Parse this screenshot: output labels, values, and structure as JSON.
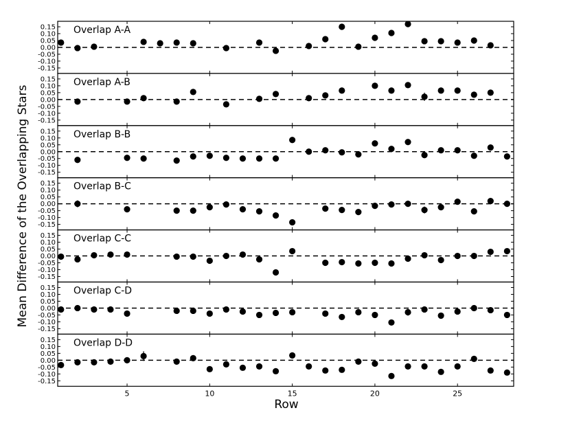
{
  "chart_data": {
    "type": "scatter",
    "xlabel": "Row",
    "ylabel": "Mean Difference of the Overlapping Stars",
    "xlim": [
      0.8,
      28.4
    ],
    "xticks": [
      5,
      10,
      15,
      20,
      25
    ],
    "ylim": [
      -0.19,
      0.19
    ],
    "yticks": [
      -0.15,
      -0.1,
      -0.05,
      0.0,
      0.05,
      0.1,
      0.15
    ],
    "ytick_labels": [
      "-0.15",
      "-0.10",
      "-0.05",
      "0.00",
      "0.05",
      "0.10",
      "0.15"
    ],
    "reference_line": {
      "y": 0,
      "style": "dashed"
    },
    "panels": [
      {
        "title": "Overlap A-A",
        "x": [
          1,
          2,
          3,
          6,
          7,
          8,
          9,
          11,
          13,
          14,
          16,
          17,
          18,
          19,
          20,
          21,
          22,
          23,
          24,
          25,
          26,
          27
        ],
        "y": [
          0.035,
          -0.005,
          0.005,
          0.04,
          0.03,
          0.035,
          0.03,
          -0.005,
          0.035,
          -0.025,
          0.01,
          0.06,
          0.15,
          0.005,
          0.07,
          0.105,
          0.17,
          0.045,
          0.045,
          0.035,
          0.05,
          0.015
        ],
        "err": [
          0,
          0,
          0,
          0,
          0,
          0,
          0,
          0,
          0,
          0,
          0,
          0,
          0,
          0,
          0,
          0,
          0,
          0.015,
          0,
          0,
          0,
          0
        ]
      },
      {
        "title": "Overlap A-B",
        "x": [
          2,
          5,
          6,
          8,
          9,
          11,
          13,
          14,
          16,
          17,
          18,
          20,
          21,
          22,
          23,
          24,
          25,
          26,
          27
        ],
        "y": [
          -0.015,
          -0.015,
          0.01,
          -0.015,
          0.055,
          -0.035,
          0.005,
          0.04,
          0.01,
          0.03,
          0.065,
          0.1,
          0.065,
          0.105,
          0.02,
          0.065,
          0.065,
          0.035,
          0.05
        ],
        "err": [
          0,
          0,
          0,
          0,
          0,
          0,
          0,
          0.01,
          0,
          0.015,
          0,
          0,
          0,
          0.015,
          0.03,
          0,
          0.02,
          0,
          0
        ]
      },
      {
        "title": "Overlap B-B",
        "x": [
          2,
          5,
          6,
          8,
          9,
          10,
          11,
          12,
          13,
          14,
          15,
          16,
          17,
          18,
          19,
          20,
          21,
          22,
          23,
          24,
          25,
          26,
          27,
          28
        ],
        "y": [
          -0.06,
          -0.045,
          -0.05,
          -0.065,
          -0.035,
          -0.03,
          -0.045,
          -0.05,
          -0.05,
          -0.05,
          0.085,
          0.0,
          0.01,
          -0.005,
          -0.02,
          0.06,
          0.02,
          0.07,
          -0.025,
          0.01,
          0.01,
          -0.03,
          0.03,
          -0.035
        ],
        "err": [
          0,
          0,
          0,
          0,
          0,
          0,
          0,
          0,
          0,
          0,
          0,
          0,
          0.01,
          0,
          0,
          0,
          0.01,
          0,
          0.015,
          0,
          0,
          0,
          0.015,
          0
        ]
      },
      {
        "title": "Overlap B-C",
        "x": [
          2,
          5,
          8,
          9,
          10,
          11,
          12,
          13,
          14,
          15,
          17,
          18,
          19,
          20,
          21,
          22,
          23,
          24,
          25,
          26,
          27,
          28
        ],
        "y": [
          0.0,
          -0.04,
          -0.05,
          -0.05,
          -0.025,
          -0.005,
          -0.04,
          -0.055,
          -0.085,
          -0.135,
          -0.035,
          -0.045,
          -0.06,
          -0.015,
          -0.005,
          0.0,
          -0.045,
          -0.025,
          0.015,
          -0.055,
          0.02,
          0.0
        ],
        "err": [
          0.025,
          0,
          0,
          0,
          0,
          0,
          0,
          0,
          0,
          0,
          0,
          0,
          0,
          0,
          0,
          0,
          0.025,
          0,
          0,
          0,
          0,
          0
        ]
      },
      {
        "title": "Overlap C-C",
        "x": [
          1,
          2,
          3,
          4,
          5,
          8,
          9,
          10,
          11,
          12,
          13,
          14,
          15,
          17,
          18,
          19,
          20,
          21,
          22,
          23,
          24,
          25,
          26,
          27,
          28
        ],
        "y": [
          -0.005,
          -0.025,
          0.005,
          0.01,
          0.01,
          -0.005,
          -0.005,
          -0.035,
          0.0,
          0.01,
          -0.025,
          -0.12,
          0.035,
          -0.05,
          -0.045,
          -0.055,
          -0.05,
          -0.055,
          -0.02,
          0.005,
          -0.03,
          0.0,
          0.0,
          0.03,
          0.035
        ],
        "err": [
          0,
          0.02,
          0,
          0,
          0,
          0,
          0,
          0,
          0,
          0,
          0,
          0,
          0,
          0,
          0,
          0,
          0,
          0,
          0,
          0,
          0,
          0,
          0,
          0,
          0
        ]
      },
      {
        "title": "Overlap C-D",
        "x": [
          1,
          2,
          3,
          4,
          5,
          8,
          9,
          10,
          11,
          12,
          13,
          14,
          15,
          17,
          18,
          19,
          20,
          21,
          22,
          23,
          24,
          25,
          26,
          27,
          28
        ],
        "y": [
          -0.01,
          0.0,
          -0.01,
          -0.01,
          -0.04,
          -0.02,
          -0.02,
          -0.04,
          -0.01,
          -0.025,
          -0.05,
          -0.035,
          -0.03,
          -0.04,
          -0.065,
          -0.03,
          -0.05,
          -0.105,
          -0.03,
          -0.01,
          -0.055,
          -0.025,
          0.0,
          -0.015,
          -0.05
        ],
        "err": [
          0,
          0,
          0,
          0,
          0,
          0,
          0,
          0,
          0,
          0,
          0,
          0,
          0,
          0,
          0,
          0,
          0,
          0,
          0.025,
          0,
          0,
          0,
          0,
          0,
          0
        ]
      },
      {
        "title": "Overlap D-D",
        "x": [
          1,
          2,
          3,
          4,
          5,
          6,
          8,
          9,
          10,
          11,
          12,
          13,
          14,
          15,
          16,
          17,
          18,
          19,
          20,
          21,
          22,
          23,
          24,
          25,
          26,
          27,
          28
        ],
        "y": [
          -0.035,
          -0.015,
          -0.015,
          -0.01,
          0.0,
          0.03,
          -0.01,
          0.015,
          -0.065,
          -0.03,
          -0.055,
          -0.045,
          -0.08,
          0.035,
          -0.045,
          -0.075,
          -0.07,
          -0.01,
          -0.025,
          -0.115,
          -0.045,
          -0.045,
          -0.085,
          -0.045,
          0.01,
          -0.075,
          -0.09
        ],
        "err": [
          0,
          0,
          0,
          0,
          0,
          0.035,
          0,
          0,
          0,
          0,
          0,
          0,
          0,
          0,
          0,
          0,
          0,
          0,
          0,
          0,
          0,
          0,
          0,
          0,
          0,
          0,
          0
        ]
      }
    ]
  }
}
